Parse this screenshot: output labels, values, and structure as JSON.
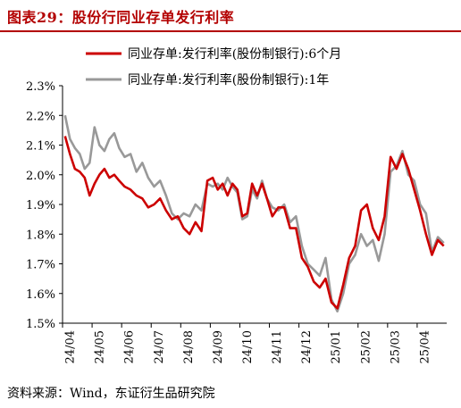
{
  "header": {
    "title": "图表29：股份行同业存单发行利率"
  },
  "footer": {
    "source": "资料来源：Wind，东证衍生品研究院"
  },
  "chart_data": {
    "type": "line",
    "title": "图表29：股份行同业存单发行利率",
    "xlabel": "",
    "ylabel": "",
    "ylim": [
      1.5,
      2.3
    ],
    "y_tick_labels": [
      "1.5%",
      "1.6%",
      "1.7%",
      "1.8%",
      "1.9%",
      "2.0%",
      "2.1%",
      "2.2%",
      "2.3%"
    ],
    "x_tick_labels": [
      "24/04",
      "24/05",
      "24/06",
      "24/07",
      "24/08",
      "24/09",
      "24/10",
      "24/11",
      "24/12",
      "25/01",
      "25/02",
      "25/03",
      "25/04"
    ],
    "legend_position": "top",
    "grid": false,
    "series": [
      {
        "name": "同业存单:发行利率(股份制银行):6个月",
        "color": "#cc0000",
        "points": [
          [
            "24/04",
            2.13
          ],
          [
            "24/04",
            2.07
          ],
          [
            "24/04",
            2.02
          ],
          [
            "24/04",
            2.01
          ],
          [
            "24/04",
            1.99
          ],
          [
            "24/04",
            1.93
          ],
          [
            "24/05",
            1.97
          ],
          [
            "24/05",
            2.0
          ],
          [
            "24/05",
            2.02
          ],
          [
            "24/05",
            1.99
          ],
          [
            "24/05",
            2.0
          ],
          [
            "24/05",
            1.98
          ],
          [
            "24/06",
            1.96
          ],
          [
            "24/06",
            1.95
          ],
          [
            "24/06",
            1.93
          ],
          [
            "24/06",
            1.92
          ],
          [
            "24/06",
            1.89
          ],
          [
            "24/07",
            1.9
          ],
          [
            "24/07",
            1.92
          ],
          [
            "24/07",
            1.88
          ],
          [
            "24/07",
            1.85
          ],
          [
            "24/07",
            1.86
          ],
          [
            "24/08",
            1.82
          ],
          [
            "24/08",
            1.8
          ],
          [
            "24/08",
            1.84
          ],
          [
            "24/08",
            1.81
          ],
          [
            "24/08",
            1.98
          ],
          [
            "24/09",
            1.99
          ],
          [
            "24/09",
            1.95
          ],
          [
            "24/09",
            1.97
          ],
          [
            "24/09",
            1.93
          ],
          [
            "24/09",
            1.97
          ],
          [
            "24/09",
            1.95
          ],
          [
            "24/10",
            1.86
          ],
          [
            "24/10",
            1.87
          ],
          [
            "24/10",
            1.97
          ],
          [
            "24/10",
            1.93
          ],
          [
            "24/10",
            1.97
          ],
          [
            "24/10",
            1.92
          ],
          [
            "24/11",
            1.86
          ],
          [
            "24/11",
            1.89
          ],
          [
            "24/11",
            1.89
          ],
          [
            "24/11",
            1.82
          ],
          [
            "24/11",
            1.82
          ],
          [
            "24/12",
            1.72
          ],
          [
            "24/12",
            1.69
          ],
          [
            "24/12",
            1.64
          ],
          [
            "24/12",
            1.62
          ],
          [
            "24/12",
            1.65
          ],
          [
            "25/01",
            1.57
          ],
          [
            "25/01",
            1.55
          ],
          [
            "25/01",
            1.63
          ],
          [
            "25/01",
            1.72
          ],
          [
            "25/01",
            1.76
          ],
          [
            "25/02",
            1.88
          ],
          [
            "25/02",
            1.9
          ],
          [
            "25/02",
            1.82
          ],
          [
            "25/02",
            1.78
          ],
          [
            "25/02",
            1.86
          ],
          [
            "25/03",
            2.06
          ],
          [
            "25/03",
            2.02
          ],
          [
            "25/03",
            2.07
          ],
          [
            "25/03",
            2.02
          ],
          [
            "25/03",
            1.95
          ],
          [
            "25/04",
            1.88
          ],
          [
            "25/04",
            1.8
          ],
          [
            "25/04",
            1.73
          ],
          [
            "25/04",
            1.78
          ],
          [
            "25/04",
            1.76
          ]
        ]
      },
      {
        "name": "同业存单:发行利率(股份制银行):1年",
        "color": "#999999",
        "points": [
          [
            "24/04",
            2.2
          ],
          [
            "24/04",
            2.12
          ],
          [
            "24/04",
            2.09
          ],
          [
            "24/04",
            2.07
          ],
          [
            "24/04",
            2.02
          ],
          [
            "24/04",
            2.04
          ],
          [
            "24/05",
            2.16
          ],
          [
            "24/05",
            2.1
          ],
          [
            "24/05",
            2.08
          ],
          [
            "24/05",
            2.12
          ],
          [
            "24/05",
            2.14
          ],
          [
            "24/05",
            2.09
          ],
          [
            "24/06",
            2.06
          ],
          [
            "24/06",
            2.07
          ],
          [
            "24/06",
            2.01
          ],
          [
            "24/06",
            2.04
          ],
          [
            "24/06",
            1.99
          ],
          [
            "24/07",
            1.96
          ],
          [
            "24/07",
            1.98
          ],
          [
            "24/07",
            1.93
          ],
          [
            "24/07",
            1.87
          ],
          [
            "24/07",
            1.85
          ],
          [
            "24/08",
            1.87
          ],
          [
            "24/08",
            1.86
          ],
          [
            "24/08",
            1.9
          ],
          [
            "24/08",
            1.88
          ],
          [
            "24/08",
            1.97
          ],
          [
            "24/09",
            1.96
          ],
          [
            "24/09",
            1.97
          ],
          [
            "24/09",
            1.95
          ],
          [
            "24/09",
            1.99
          ],
          [
            "24/09",
            1.96
          ],
          [
            "24/09",
            1.94
          ],
          [
            "24/10",
            1.85
          ],
          [
            "24/10",
            1.86
          ],
          [
            "24/10",
            1.95
          ],
          [
            "24/10",
            1.92
          ],
          [
            "24/10",
            1.98
          ],
          [
            "24/10",
            1.92
          ],
          [
            "24/11",
            1.89
          ],
          [
            "24/11",
            1.88
          ],
          [
            "24/11",
            1.9
          ],
          [
            "24/11",
            1.84
          ],
          [
            "24/11",
            1.86
          ],
          [
            "24/12",
            1.76
          ],
          [
            "24/12",
            1.7
          ],
          [
            "24/12",
            1.68
          ],
          [
            "24/12",
            1.66
          ],
          [
            "24/12",
            1.72
          ],
          [
            "25/01",
            1.58
          ],
          [
            "25/01",
            1.54
          ],
          [
            "25/01",
            1.6
          ],
          [
            "25/01",
            1.7
          ],
          [
            "25/01",
            1.73
          ],
          [
            "25/02",
            1.8
          ],
          [
            "25/02",
            1.76
          ],
          [
            "25/02",
            1.78
          ],
          [
            "25/02",
            1.71
          ],
          [
            "25/02",
            1.8
          ],
          [
            "25/03",
            2.01
          ],
          [
            "25/03",
            2.03
          ],
          [
            "25/03",
            2.08
          ],
          [
            "25/03",
            2.0
          ],
          [
            "25/03",
            1.98
          ],
          [
            "25/04",
            1.9
          ],
          [
            "25/04",
            1.87
          ],
          [
            "25/04",
            1.74
          ],
          [
            "25/04",
            1.79
          ],
          [
            "25/04",
            1.77
          ]
        ]
      }
    ]
  }
}
